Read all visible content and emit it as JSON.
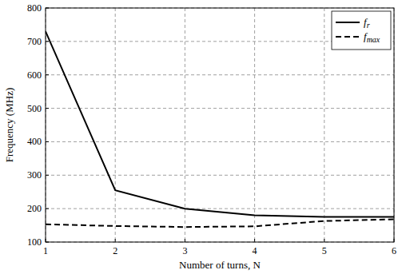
{
  "chart_data": {
    "type": "line",
    "x_label": "Number of turns, N",
    "y_label": "Frequency (MHz)",
    "x": [
      1,
      2,
      3,
      4,
      5,
      6
    ],
    "series": [
      {
        "name": "fr",
        "color": "#000000",
        "line_style": "solid",
        "values": [
          730,
          255,
          200,
          180,
          175,
          175
        ]
      },
      {
        "name": "fmax",
        "color": "#000000",
        "line_style": "dashed",
        "values": [
          153,
          148,
          145,
          147,
          163,
          168
        ]
      }
    ],
    "xlim": [
      1,
      6
    ],
    "xticks": [
      1,
      2,
      3,
      4,
      5,
      6
    ],
    "ylim": [
      100,
      800
    ],
    "yticks": [
      100,
      200,
      300,
      400,
      500,
      600,
      700,
      800
    ],
    "grid": true,
    "legend": "upper right"
  }
}
